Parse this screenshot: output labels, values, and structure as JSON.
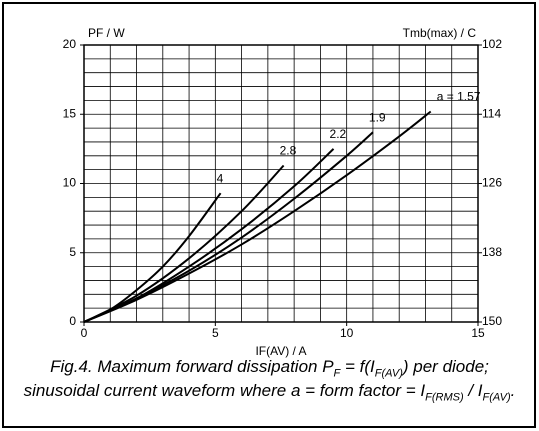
{
  "chart_data": {
    "type": "line",
    "ylabel": "PF / W",
    "y2label": "Tmb(max) / C",
    "xlabel": "IF(AV) / A",
    "xlim": [
      0,
      15
    ],
    "xticks": [
      0,
      5,
      10,
      15
    ],
    "ylim": [
      0,
      20
    ],
    "yticks": [
      0,
      5,
      10,
      15,
      20
    ],
    "y2lim": [
      150,
      102
    ],
    "y2ticks": [
      102,
      114,
      126,
      138,
      150
    ],
    "grid": true,
    "series": [
      {
        "name": "a = 1.57",
        "color": "#000000",
        "x": [
          0,
          2,
          4,
          6,
          8,
          10,
          12,
          13.2
        ],
        "values": [
          0,
          1.6,
          3.5,
          5.6,
          8.0,
          10.6,
          13.4,
          15.2
        ]
      },
      {
        "name": "1.9",
        "color": "#000000",
        "x": [
          0,
          2,
          4,
          6,
          8,
          10,
          11
        ],
        "values": [
          0,
          1.7,
          3.7,
          6.1,
          8.9,
          12.0,
          13.7
        ]
      },
      {
        "name": "2.2",
        "color": "#000000",
        "x": [
          0,
          2,
          4,
          6,
          8,
          9.5
        ],
        "values": [
          0,
          1.7,
          4.0,
          6.7,
          9.8,
          12.5
        ]
      },
      {
        "name": "2.8",
        "color": "#000000",
        "x": [
          0,
          2,
          4,
          6,
          7.6
        ],
        "values": [
          0,
          1.9,
          4.6,
          8.0,
          11.3
        ]
      },
      {
        "name": "4",
        "color": "#000000",
        "x": [
          0,
          1,
          2,
          3,
          4,
          5.2
        ],
        "values": [
          0,
          0.9,
          2.3,
          4.0,
          6.2,
          9.3
        ]
      }
    ],
    "caption": [
      "Fig.4.  Maximum forward dissipation P",
      "F",
      " = f(I",
      "F(AV)",
      ") per diode; sinusoidal current waveform where a = form factor = I",
      "F(RMS)",
      " / I",
      "F(AV)",
      "."
    ]
  }
}
